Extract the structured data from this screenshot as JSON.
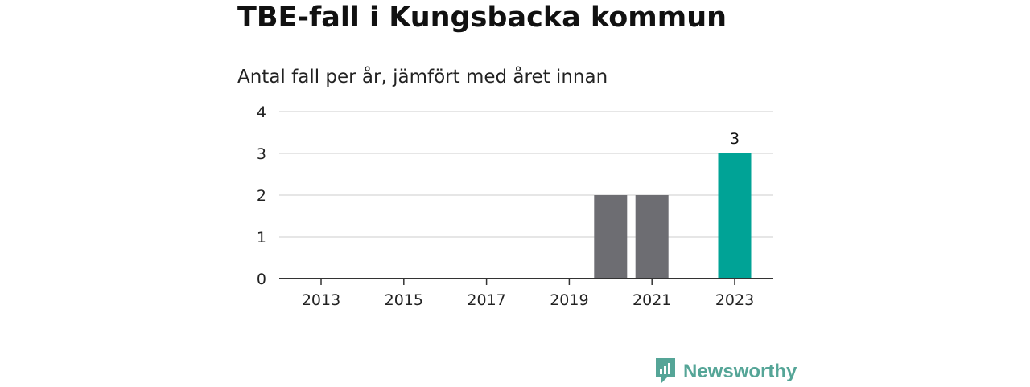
{
  "header": {
    "title": "TBE-fall i Kungsbacka kommun",
    "subtitle": "Antal fall per år, jämfört med året innan"
  },
  "brand": {
    "name": "Newsworthy",
    "color": "#55a597",
    "icon": "newsworthy-chart-logo-icon"
  },
  "chart_data": {
    "type": "bar",
    "categories": [
      "2013",
      "2014",
      "2015",
      "2016",
      "2017",
      "2018",
      "2019",
      "2020",
      "2021",
      "2022",
      "2023"
    ],
    "values": [
      0,
      0,
      0,
      0,
      0,
      0,
      0,
      2,
      2,
      0,
      3
    ],
    "x_tick_labels": [
      "2013",
      "2015",
      "2017",
      "2019",
      "2021",
      "2023"
    ],
    "y_ticks": [
      0,
      1,
      2,
      3,
      4
    ],
    "ylim": [
      0,
      4
    ],
    "data_labels": [
      {
        "category": "2023",
        "value": 3,
        "text": "3"
      }
    ],
    "highlight_category": "2023",
    "colors": {
      "bar": "#6d6d72",
      "highlight": "#00a396",
      "grid": "#dddddd",
      "axis": "#333333"
    },
    "grid": true,
    "xlabel": "",
    "ylabel": ""
  }
}
